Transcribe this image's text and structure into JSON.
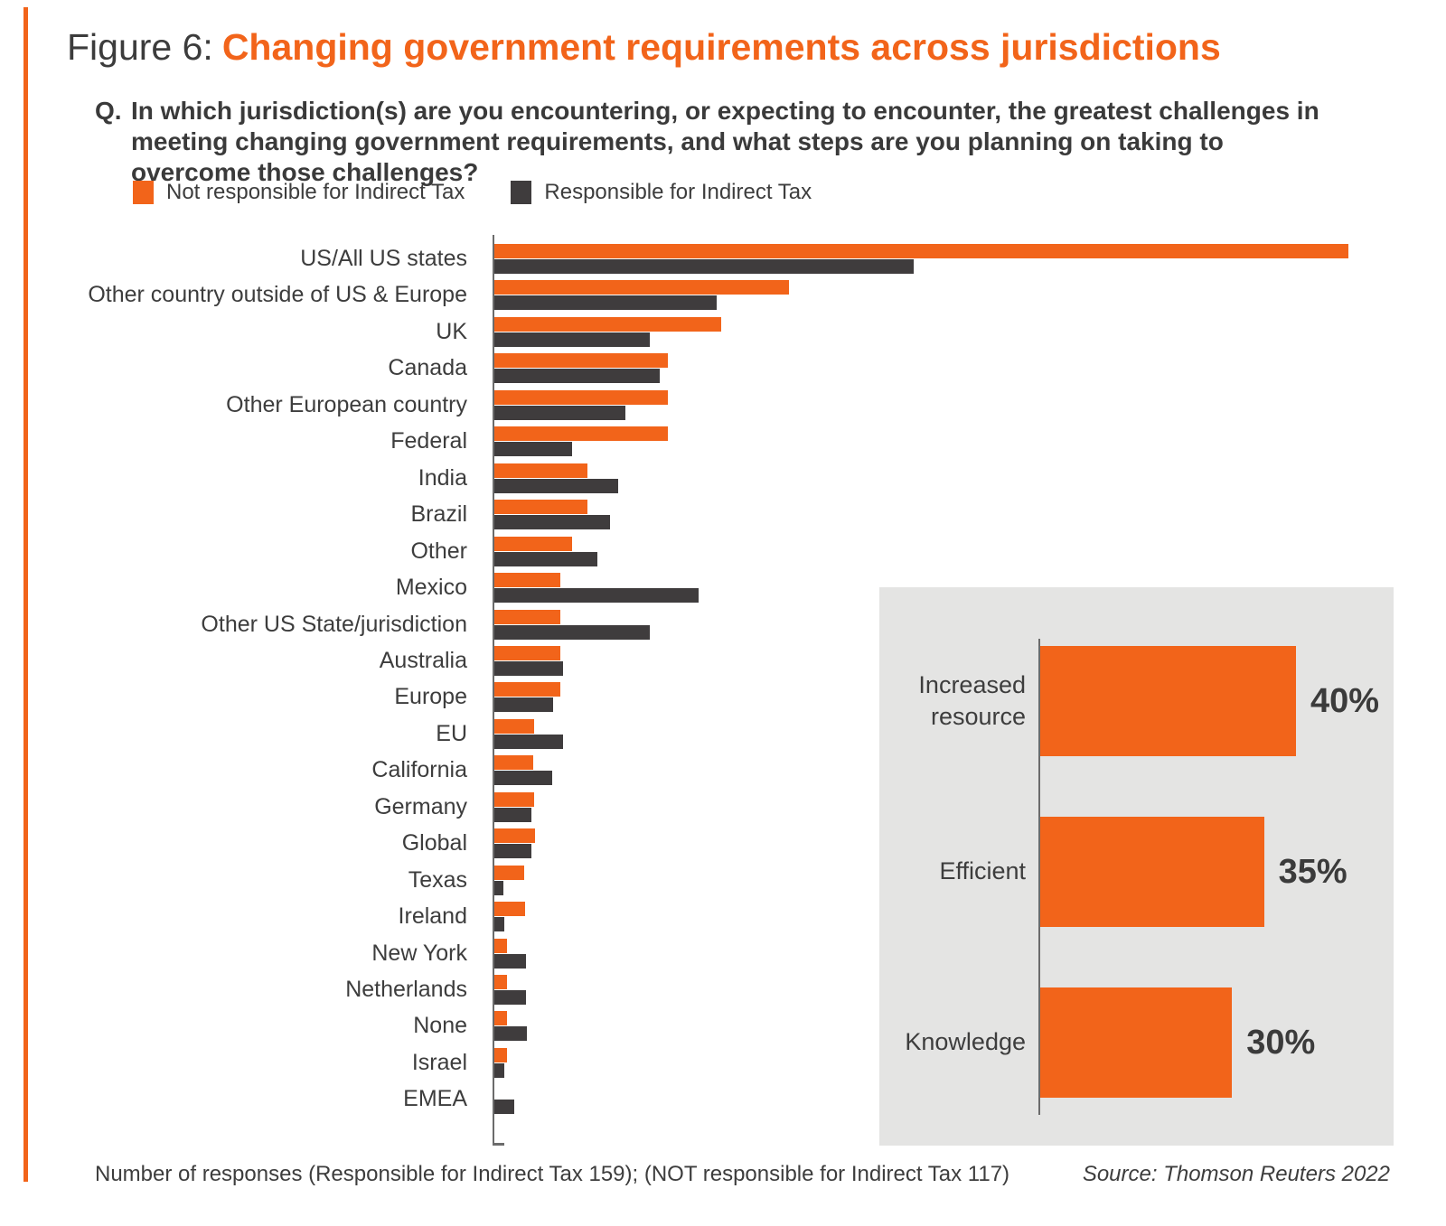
{
  "figure": {
    "label": "Figure 6:",
    "title": "Changing government requirements across jurisdictions",
    "question_prefix": "Q.",
    "question": "In which jurisdiction(s) are you encountering, or expecting to encounter, the greatest challenges in meeting changing government requirements, and what steps are you planning on taking to overcome those challenges?"
  },
  "legend": [
    {
      "label": "Not responsible for Indirect Tax",
      "color": "#f2641a"
    },
    {
      "label": "Responsible for Indirect Tax",
      "color": "#3f3c3d"
    }
  ],
  "chart_data": [
    {
      "type": "bar",
      "orientation": "horizontal",
      "note": "Axis unlabeled in source; values are relative bar lengths scaled so the longest bar (US/All US states, Not responsible) = 100.",
      "xlim": [
        0,
        100
      ],
      "grid": false,
      "categories": [
        "US/All US states",
        "Other country outside of US & Europe",
        "UK",
        "Canada",
        "Other European country",
        "Federal",
        "India",
        "Brazil",
        "Other",
        "Mexico",
        "Other US State/jurisdiction",
        "Australia",
        "Europe",
        "EU",
        "California",
        "Germany",
        "Global",
        "Texas",
        "Ireland",
        "New York",
        "Netherlands",
        "None",
        "Israel",
        "EMEA"
      ],
      "series": [
        {
          "name": "Not responsible for Indirect Tax",
          "color": "#f2641a",
          "values": [
            100,
            34.5,
            26.6,
            20.3,
            20.3,
            20.3,
            10.9,
            10.9,
            9.1,
            7.7,
            7.7,
            7.7,
            7.7,
            4.7,
            4.6,
            4.7,
            4.8,
            3.5,
            3.6,
            1.5,
            1.5,
            1.5,
            1.5,
            0
          ]
        },
        {
          "name": "Responsible for Indirect Tax",
          "color": "#3f3c3d",
          "values": [
            49.1,
            26.0,
            18.2,
            19.4,
            15.3,
            9.1,
            14.5,
            13.5,
            12.1,
            23.9,
            18.2,
            8.0,
            6.9,
            8.0,
            6.8,
            4.3,
            4.3,
            1.1,
            1.2,
            3.7,
            3.7,
            3.8,
            1.2,
            2.3
          ]
        }
      ]
    },
    {
      "type": "bar",
      "orientation": "horizontal",
      "panel_bg": "#e4e4e3",
      "color": "#f2641a",
      "categories": [
        "Increased resource",
        "Efficient",
        "Knowledge"
      ],
      "values": [
        40,
        35,
        30
      ],
      "value_labels": [
        "40%",
        "35%",
        "30%"
      ],
      "xlim": [
        0,
        45
      ],
      "grid": false
    }
  ],
  "footer": {
    "responses": "Number of responses (Responsible for Indirect Tax 159); (NOT responsible for Indirect Tax 117)",
    "source": "Source: Thomson Reuters 2022"
  }
}
